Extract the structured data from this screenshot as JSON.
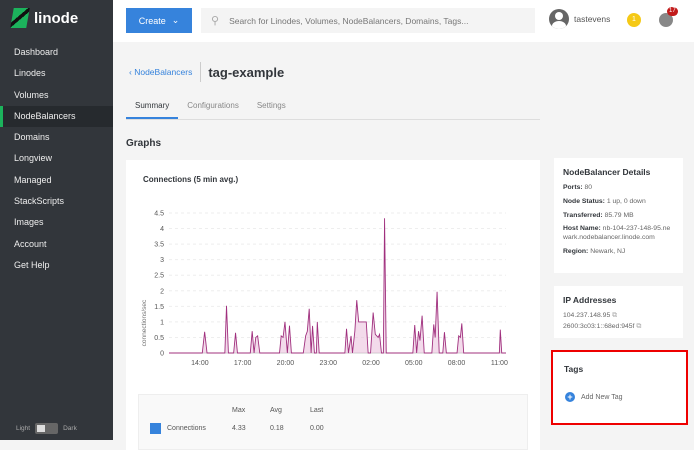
{
  "app": {
    "logo": "linode"
  },
  "sidebar": {
    "items": [
      {
        "label": "Dashboard"
      },
      {
        "label": "Linodes"
      },
      {
        "label": "Volumes"
      },
      {
        "label": "NodeBalancers",
        "active": true
      },
      {
        "label": "Domains"
      },
      {
        "label": "Longview"
      },
      {
        "label": "Managed"
      },
      {
        "label": "StackScripts"
      },
      {
        "label": "Images"
      },
      {
        "label": "Account"
      },
      {
        "label": "Get Help"
      }
    ],
    "theme": {
      "light": "Light",
      "dark": "Dark"
    }
  },
  "topbar": {
    "create": "Create",
    "search_placeholder": "Search for Linodes, Volumes, NodeBalancers, Domains, Tags...",
    "username": "tastevens",
    "notifications": "1",
    "events": "17"
  },
  "page": {
    "back": "NodeBalancers",
    "title": "tag-example",
    "tabs": [
      {
        "label": "Summary",
        "active": true
      },
      {
        "label": "Configurations"
      },
      {
        "label": "Settings"
      }
    ],
    "section": "Graphs"
  },
  "chart_data": {
    "type": "line",
    "title": "Connections (5 min avg.)",
    "ylabel": "connections/sec",
    "ylim": [
      0,
      4.5
    ],
    "yticks": [
      "0",
      "0.5",
      "1",
      "1.5",
      "2",
      "2.5",
      "3",
      "3.5",
      "4",
      "4.5"
    ],
    "xticks": [
      "14:00",
      "17:00",
      "20:00",
      "23:00",
      "02:00",
      "05:00",
      "08:00",
      "11:00"
    ],
    "grid": true,
    "color": "#a0307e",
    "series": [
      {
        "name": "Connections",
        "points": [
          [
            "11:50",
            0
          ],
          [
            "14:10",
            0
          ],
          [
            "14:20",
            0.68
          ],
          [
            "14:30",
            0
          ],
          [
            "15:45",
            0
          ],
          [
            "15:52",
            1.52
          ],
          [
            "16:00",
            0
          ],
          [
            "16:22",
            0
          ],
          [
            "16:30",
            0.65
          ],
          [
            "16:38",
            0
          ],
          [
            "17:32",
            0
          ],
          [
            "17:40",
            0.7
          ],
          [
            "17:48",
            0
          ],
          [
            "17:55",
            0.5
          ],
          [
            "18:03",
            0.55
          ],
          [
            "18:12",
            0
          ],
          [
            "19:35",
            0
          ],
          [
            "19:42",
            0.55
          ],
          [
            "19:50",
            0.5
          ],
          [
            "19:58",
            1.0
          ],
          [
            "20:08",
            0
          ],
          [
            "20:17",
            0.88
          ],
          [
            "20:25",
            0
          ],
          [
            "21:15",
            0
          ],
          [
            "21:25",
            0.55
          ],
          [
            "21:32",
            0.7
          ],
          [
            "21:40",
            1.42
          ],
          [
            "21:48",
            0
          ],
          [
            "21:54",
            0.87
          ],
          [
            "22:02",
            0
          ],
          [
            "22:10",
            0
          ],
          [
            "22:14",
            1.0
          ],
          [
            "22:22",
            0
          ],
          [
            "00:10",
            0
          ],
          [
            "00:17",
            0.78
          ],
          [
            "00:25",
            0
          ],
          [
            "00:36",
            0.55
          ],
          [
            "00:42",
            0
          ],
          [
            "00:52",
            0.7
          ],
          [
            "01:00",
            1.7
          ],
          [
            "01:08",
            1.0
          ],
          [
            "01:40",
            1.0
          ],
          [
            "01:48",
            0
          ],
          [
            "01:58",
            0
          ],
          [
            "02:09",
            1.3
          ],
          [
            "02:18",
            0.6
          ],
          [
            "02:30",
            0.5
          ],
          [
            "02:36",
            0.6
          ],
          [
            "02:44",
            0
          ],
          [
            "02:52",
            0
          ],
          [
            "02:57",
            4.33
          ],
          [
            "03:04",
            0
          ],
          [
            "04:56",
            0
          ],
          [
            "05:04",
            0.9
          ],
          [
            "05:12",
            0
          ],
          [
            "05:20",
            0.7
          ],
          [
            "05:26",
            0.4
          ],
          [
            "05:35",
            1.2
          ],
          [
            "05:44",
            0
          ],
          [
            "06:16",
            0
          ],
          [
            "06:24",
            0.92
          ],
          [
            "06:30",
            0.5
          ],
          [
            "06:38",
            1.97
          ],
          [
            "06:47",
            0
          ],
          [
            "07:02",
            0
          ],
          [
            "07:09",
            0.67
          ],
          [
            "07:17",
            0
          ],
          [
            "08:02",
            0
          ],
          [
            "08:09",
            0.55
          ],
          [
            "08:16",
            0.5
          ],
          [
            "08:22",
            0.95
          ],
          [
            "08:30",
            0
          ],
          [
            "11:00",
            0
          ],
          [
            "11:04",
            0.75
          ],
          [
            "11:10",
            0
          ],
          [
            "11:28",
            0
          ]
        ]
      }
    ],
    "legend": {
      "headers": [
        "Max",
        "Avg",
        "Last"
      ],
      "rows": [
        {
          "label": "Connections",
          "color": "#3683dc",
          "max": "4.33",
          "avg": "0.18",
          "last": "0.00"
        }
      ]
    }
  },
  "details": {
    "title": "NodeBalancer Details",
    "ports_label": "Ports:",
    "ports": "80",
    "status_label": "Node Status:",
    "status": "1 up, 0 down",
    "transferred_label": "Transferred:",
    "transferred": "85.79 MB",
    "host_label": "Host Name:",
    "host": "nb-104-237-148-95.newark.nodebalancer.linode.com",
    "region_label": "Region:",
    "region": "Newark, NJ"
  },
  "ips": {
    "title": "IP Addresses",
    "list": [
      "104.237.148.95",
      "2600:3c03:1::68ed:945f"
    ]
  },
  "tags": {
    "title": "Tags",
    "add": "Add New Tag"
  }
}
